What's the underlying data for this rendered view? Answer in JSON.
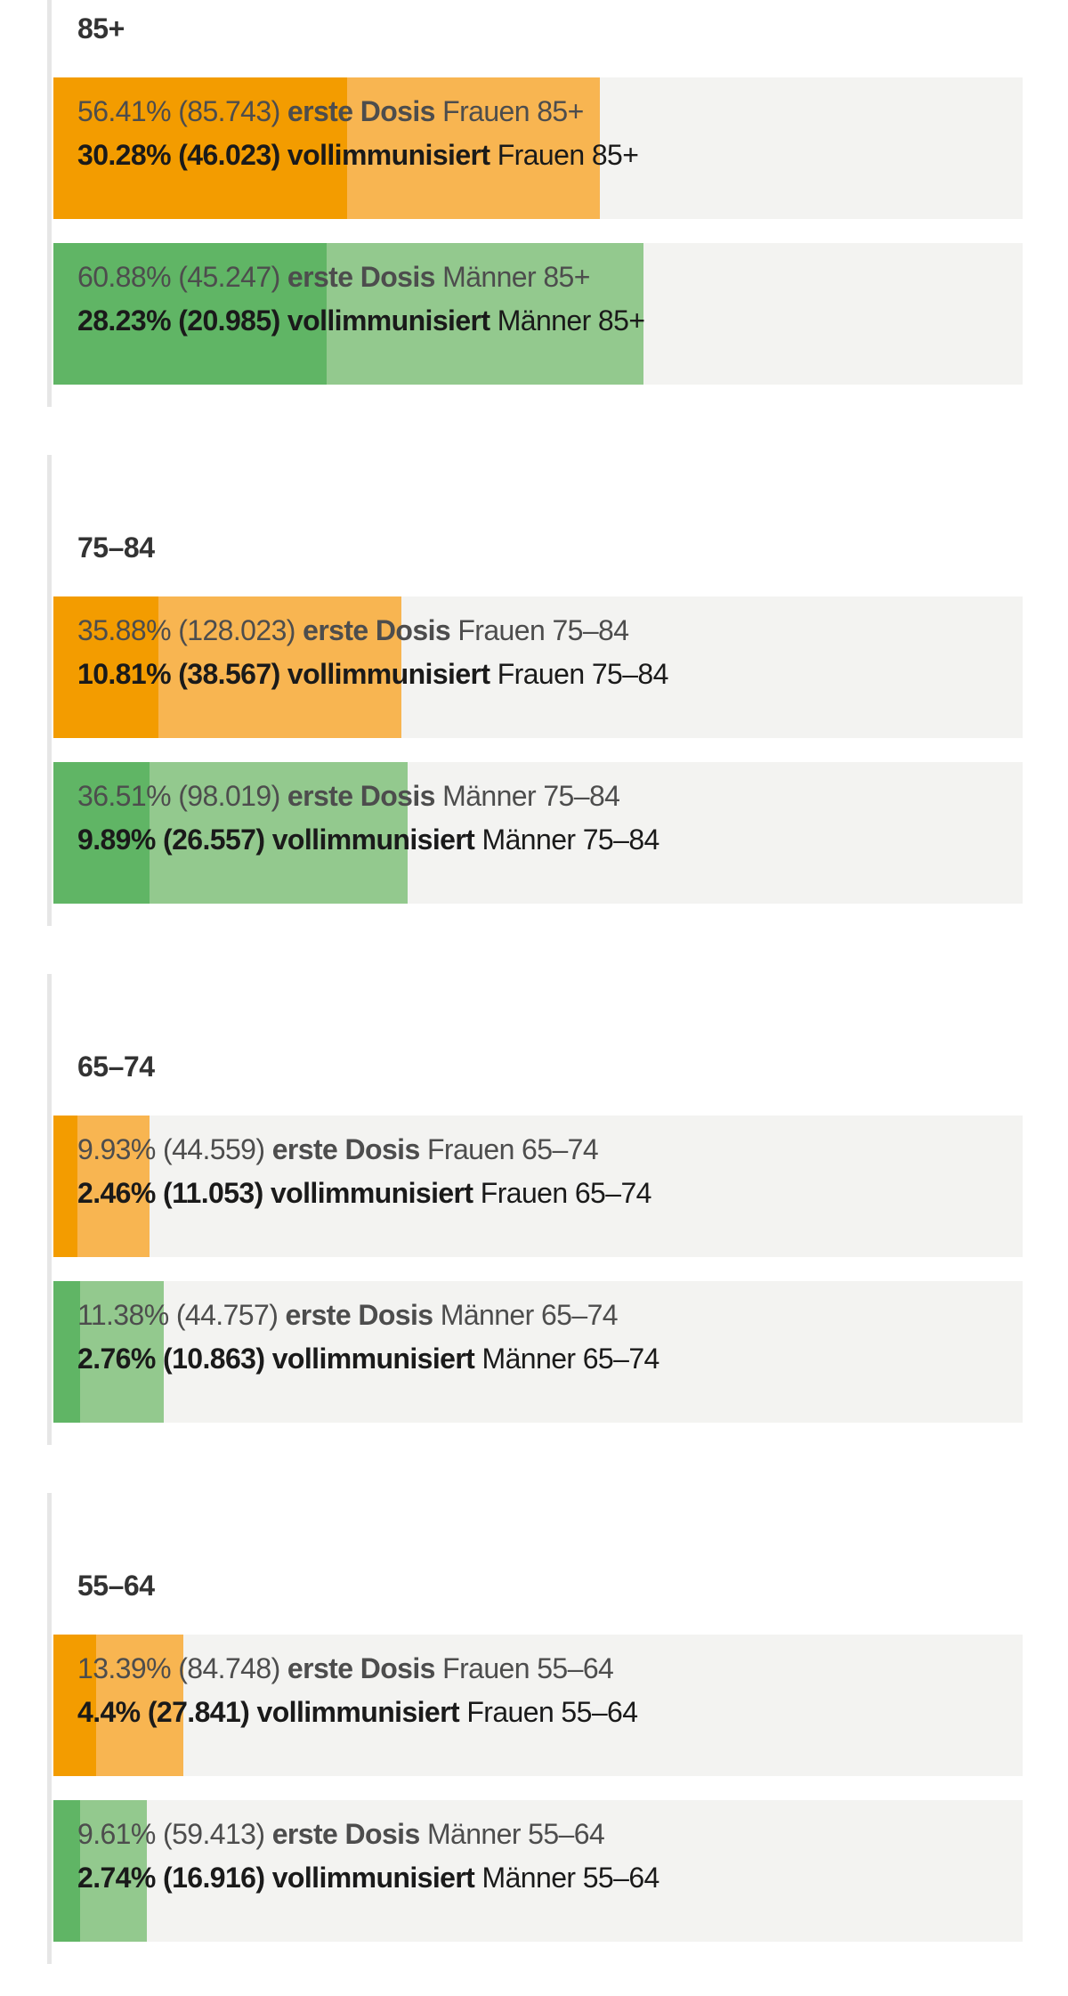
{
  "colors": {
    "frauen_full": "#f39c00",
    "frauen_first": "#f8b551",
    "maenner_full": "#60b565",
    "maenner_first": "#93c98e",
    "track": "#f3f3f1"
  },
  "chart_data": {
    "type": "bar",
    "orientation": "horizontal",
    "xlim": [
      0,
      100
    ],
    "unit": "%",
    "groups": [
      {
        "title": "85+",
        "bars": [
          {
            "sex": "Frauen",
            "first_pct": "56.41%",
            "first_pct_value": 56.41,
            "first_count": "(85.743)",
            "first_label": "erste Dosis",
            "full_pct": "30.28%",
            "full_pct_value": 30.28,
            "full_count": "(46.023)",
            "full_label": "vollimmunisiert",
            "group_label": "Frauen 85+"
          },
          {
            "sex": "Männer",
            "first_pct": "60.88%",
            "first_pct_value": 60.88,
            "first_count": "(45.247)",
            "first_label": "erste Dosis",
            "full_pct": "28.23%",
            "full_pct_value": 28.23,
            "full_count": "(20.985)",
            "full_label": "vollimmunisiert",
            "group_label": "Männer 85+"
          }
        ]
      },
      {
        "title": "75–84",
        "bars": [
          {
            "sex": "Frauen",
            "first_pct": "35.88%",
            "first_pct_value": 35.88,
            "first_count": "(128.023)",
            "first_label": "erste Dosis",
            "full_pct": "10.81%",
            "full_pct_value": 10.81,
            "full_count": "(38.567)",
            "full_label": "vollimmunisiert",
            "group_label": "Frauen 75–84"
          },
          {
            "sex": "Männer",
            "first_pct": "36.51%",
            "first_pct_value": 36.51,
            "first_count": "(98.019)",
            "first_label": "erste Dosis",
            "full_pct": "9.89%",
            "full_pct_value": 9.89,
            "full_count": "(26.557)",
            "full_label": "vollimmunisiert",
            "group_label": "Männer 75–84"
          }
        ]
      },
      {
        "title": "65–74",
        "bars": [
          {
            "sex": "Frauen",
            "first_pct": "9.93%",
            "first_pct_value": 9.93,
            "first_count": "(44.559)",
            "first_label": "erste Dosis",
            "full_pct": "2.46%",
            "full_pct_value": 2.46,
            "full_count": "(11.053)",
            "full_label": "vollimmunisiert",
            "group_label": "Frauen 65–74"
          },
          {
            "sex": "Männer",
            "first_pct": "11.38%",
            "first_pct_value": 11.38,
            "first_count": "(44.757)",
            "first_label": "erste Dosis",
            "full_pct": "2.76%",
            "full_pct_value": 2.76,
            "full_count": "(10.863)",
            "full_label": "vollimmunisiert",
            "group_label": "Männer 65–74"
          }
        ]
      },
      {
        "title": "55–64",
        "bars": [
          {
            "sex": "Frauen",
            "first_pct": "13.39%",
            "first_pct_value": 13.39,
            "first_count": "(84.748)",
            "first_label": "erste Dosis",
            "full_pct": "4.4%",
            "full_pct_value": 4.4,
            "full_count": "(27.841)",
            "full_label": "vollimmunisiert",
            "group_label": "Frauen 55–64"
          },
          {
            "sex": "Männer",
            "first_pct": "9.61%",
            "first_pct_value": 9.61,
            "first_count": "(59.413)",
            "first_label": "erste Dosis",
            "full_pct": "2.74%",
            "full_pct_value": 2.74,
            "full_count": "(16.916)",
            "full_label": "vollimmunisiert",
            "group_label": "Männer 55–64"
          }
        ]
      }
    ]
  }
}
